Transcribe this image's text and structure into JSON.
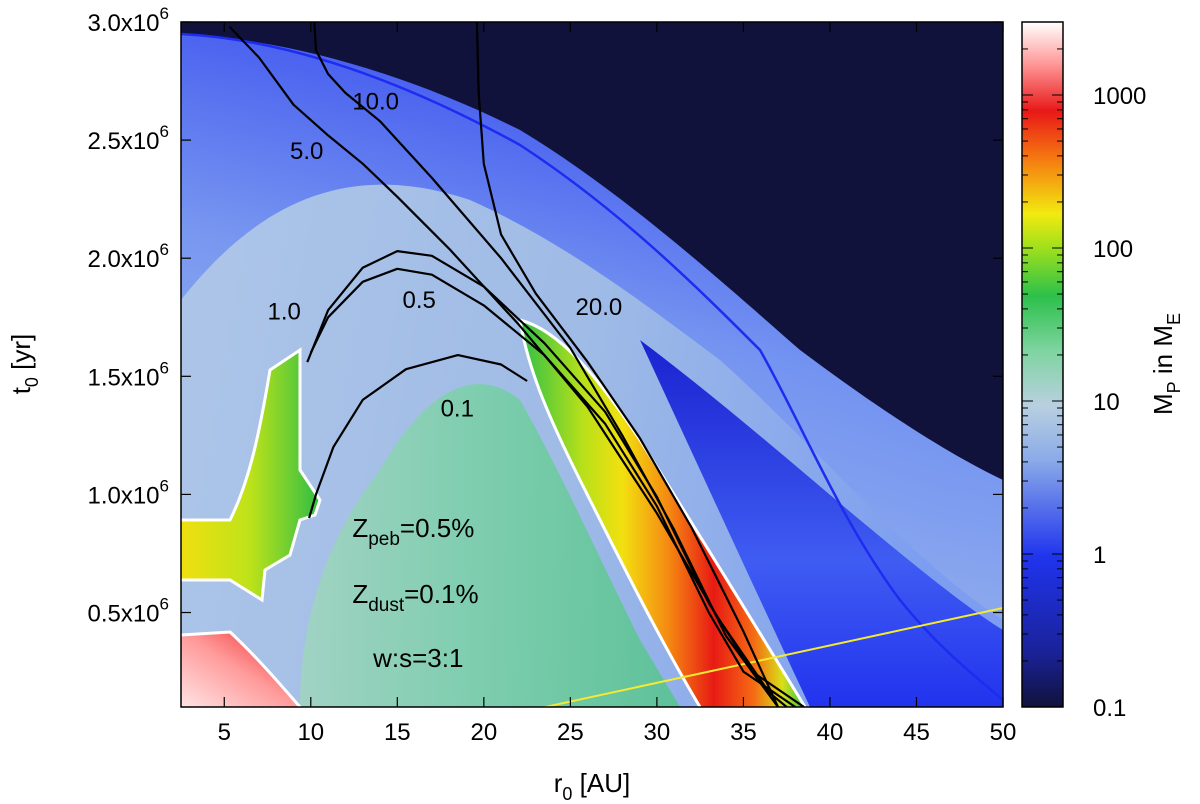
{
  "chart_data": {
    "type": "heatmap",
    "xlabel": {
      "base": "r",
      "sub": "0",
      "rest": " [AU]"
    },
    "ylabel": {
      "base": "t",
      "sub": "0",
      "rest": " [yr]"
    },
    "colorbar_label": {
      "m": "M",
      "msub": "P",
      "mid": " in M",
      "esub": "E"
    },
    "xlim": [
      2.5,
      50
    ],
    "ylim": [
      100000,
      3000000
    ],
    "x_ticks": [
      {
        "v": 5,
        "label": "5"
      },
      {
        "v": 10,
        "label": "10"
      },
      {
        "v": 15,
        "label": "15"
      },
      {
        "v": 20,
        "label": "20"
      },
      {
        "v": 25,
        "label": "25"
      },
      {
        "v": 30,
        "label": "30"
      },
      {
        "v": 35,
        "label": "35"
      },
      {
        "v": 40,
        "label": "40"
      },
      {
        "v": 45,
        "label": "45"
      },
      {
        "v": 50,
        "label": "50"
      }
    ],
    "y_ticks": [
      {
        "v": 500000,
        "base": "0.5x10",
        "exp": "6"
      },
      {
        "v": 1000000,
        "base": "1.0x10",
        "exp": "6"
      },
      {
        "v": 1500000,
        "base": "1.5x10",
        "exp": "6"
      },
      {
        "v": 2000000,
        "base": "2.0x10",
        "exp": "6"
      },
      {
        "v": 2500000,
        "base": "2.5x10",
        "exp": "6"
      },
      {
        "v": 3000000,
        "base": "3.0x10",
        "exp": "6"
      }
    ],
    "colorbar": {
      "scale": "log",
      "range": [
        0.1,
        3000
      ],
      "ticks": [
        {
          "v": 0.1,
          "label": "0.1"
        },
        {
          "v": 1,
          "label": "1"
        },
        {
          "v": 10,
          "label": "10"
        },
        {
          "v": 100,
          "label": "100"
        },
        {
          "v": 1000,
          "label": "1000"
        }
      ]
    },
    "colors": {
      "dark": "#10123b",
      "blue": "#1f2fe8",
      "light_blue": "#aac4e8",
      "green": "#2fc04a",
      "yellow": "#f2ea10",
      "orange": "#f57a10",
      "red": "#e81818",
      "pink": "#ffd6d6",
      "white": "#ffffff"
    },
    "contours": [
      {
        "label": "0.1",
        "label_x": 17.5,
        "label_y": 1330000,
        "points": [
          [
            9.9,
            900000
          ],
          [
            10.3,
            1000000
          ],
          [
            11.3,
            1200000
          ],
          [
            13,
            1400000
          ],
          [
            15.5,
            1530000
          ],
          [
            18.5,
            1590000
          ],
          [
            21,
            1550000
          ],
          [
            22.5,
            1480000
          ]
        ]
      },
      {
        "label": "0.5",
        "label_x": 15.3,
        "label_y": 1790000,
        "points": [
          [
            10.0,
            1600000
          ],
          [
            11,
            1750000
          ],
          [
            13,
            1900000
          ],
          [
            15,
            1955000
          ],
          [
            17,
            1930000
          ],
          [
            20,
            1800000
          ],
          [
            23.5,
            1590000
          ],
          [
            27,
            1300000
          ],
          [
            30,
            950000
          ],
          [
            33,
            500000
          ],
          [
            35,
            250000
          ],
          [
            38,
            100000
          ]
        ]
      },
      {
        "label": "1.0",
        "label_x": 7.5,
        "label_y": 1740000,
        "points": [
          [
            9.8,
            1560000
          ],
          [
            11,
            1780000
          ],
          [
            13,
            1960000
          ],
          [
            15,
            2030000
          ],
          [
            17,
            2010000
          ],
          [
            20,
            1880000
          ],
          [
            23.5,
            1640000
          ],
          [
            27,
            1350000
          ],
          [
            30,
            990000
          ],
          [
            33,
            540000
          ],
          [
            35.5,
            250000
          ],
          [
            38.5,
            100000
          ]
        ]
      },
      {
        "label": "5.0",
        "label_x": 8.8,
        "label_y": 2420000,
        "points": [
          [
            5.3,
            2980000
          ],
          [
            7,
            2850000
          ],
          [
            9,
            2650000
          ],
          [
            11,
            2520000
          ],
          [
            13,
            2400000
          ],
          [
            15,
            2260000
          ],
          [
            18,
            2040000
          ],
          [
            22,
            1720000
          ],
          [
            26,
            1370000
          ],
          [
            30,
            920000
          ],
          [
            33.5,
            480000
          ],
          [
            36.5,
            160000
          ],
          [
            37.5,
            100000
          ]
        ]
      },
      {
        "label": "10.0",
        "label_x": 12.4,
        "label_y": 2630000,
        "points": [
          [
            10.2,
            3000000
          ],
          [
            10.3,
            2880000
          ],
          [
            11,
            2780000
          ],
          [
            12,
            2700000
          ],
          [
            14,
            2580000
          ],
          [
            17,
            2340000
          ],
          [
            21,
            2000000
          ],
          [
            25,
            1620000
          ],
          [
            28,
            1250000
          ],
          [
            31,
            850000
          ],
          [
            34,
            400000
          ],
          [
            37,
            100000
          ]
        ]
      },
      {
        "label": "20.0",
        "label_x": 25.3,
        "label_y": 1760000,
        "points": [
          [
            19.6,
            3000000
          ],
          [
            19.7,
            2700000
          ],
          [
            20.0,
            2400000
          ],
          [
            21,
            2100000
          ],
          [
            23,
            1850000
          ],
          [
            26,
            1560000
          ],
          [
            29,
            1240000
          ],
          [
            32,
            860000
          ],
          [
            35,
            420000
          ],
          [
            37,
            100000
          ]
        ]
      }
    ],
    "annotations": [
      {
        "base": "Z",
        "sub": "peb",
        "rest": "=0.5%",
        "x": 12.4,
        "y": 820000
      },
      {
        "base": "Z",
        "sub": "dust",
        "rest": "=0.1%",
        "x": 12.4,
        "y": 540000
      },
      {
        "text": "w:s=3:1",
        "x": 13.6,
        "y": 270000
      }
    ]
  }
}
